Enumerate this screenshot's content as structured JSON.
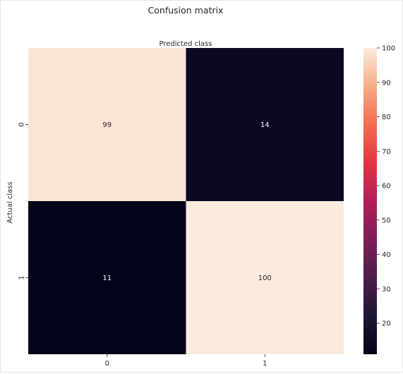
{
  "chart_data": {
    "type": "heatmap",
    "title": "Confusion matrix",
    "xlabel": "Predicted class",
    "ylabel": "Actual class",
    "x_categories": [
      "0",
      "1"
    ],
    "y_categories": [
      "0",
      "1"
    ],
    "values": [
      [
        99,
        14
      ],
      [
        11,
        100
      ]
    ],
    "colorbar": {
      "range": [
        11,
        100
      ],
      "ticks": [
        20,
        30,
        40,
        50,
        60,
        70,
        80,
        90,
        100
      ]
    },
    "colormap": "rocket",
    "annotations": true
  }
}
